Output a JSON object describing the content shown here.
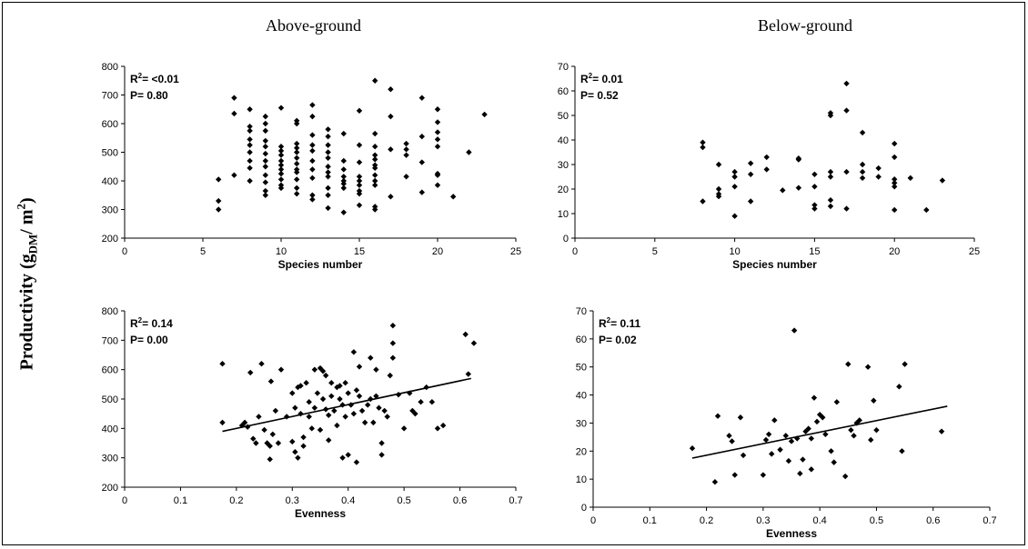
{
  "figure": {
    "col_titles": [
      "Above-ground",
      "Below-ground"
    ],
    "y_title_main": "Productivity (g",
    "y_title_sub": "DM",
    "y_title_mid": "/ m",
    "y_title_sup": "2",
    "y_title_end": ")"
  },
  "chart_data": [
    {
      "type": "scatter",
      "title": "Above-ground",
      "xlabel": "Species number",
      "ylabel": "Productivity (g DM/ m2)",
      "xlim": [
        0,
        25
      ],
      "ylim": [
        200,
        800
      ],
      "xticks": [
        0,
        5,
        10,
        15,
        20,
        25
      ],
      "yticks": [
        200,
        300,
        400,
        500,
        600,
        700,
        800
      ],
      "stats": {
        "r2_label": "R",
        "r2_sup": "2",
        "r2_value": "= <0.01",
        "p_text": "P= 0.80"
      },
      "grid": false,
      "points": [
        [
          6,
          405
        ],
        [
          6,
          330
        ],
        [
          6,
          300
        ],
        [
          7,
          690
        ],
        [
          7,
          635
        ],
        [
          7,
          420
        ],
        [
          8,
          650
        ],
        [
          8,
          590
        ],
        [
          8,
          575
        ],
        [
          8,
          545
        ],
        [
          8,
          525
        ],
        [
          8,
          500
        ],
        [
          8,
          470
        ],
        [
          8,
          445
        ],
        [
          8,
          400
        ],
        [
          9,
          625
        ],
        [
          9,
          600
        ],
        [
          9,
          575
        ],
        [
          9,
          540
        ],
        [
          9,
          520
        ],
        [
          9,
          495
        ],
        [
          9,
          470
        ],
        [
          9,
          450
        ],
        [
          9,
          420
        ],
        [
          9,
          395
        ],
        [
          9,
          365
        ],
        [
          9,
          350
        ],
        [
          10,
          655
        ],
        [
          10,
          520
        ],
        [
          10,
          505
        ],
        [
          10,
          490
        ],
        [
          10,
          470
        ],
        [
          10,
          455
        ],
        [
          10,
          440
        ],
        [
          10,
          425
        ],
        [
          10,
          405
        ],
        [
          10,
          385
        ],
        [
          10,
          375
        ],
        [
          11,
          610
        ],
        [
          11,
          600
        ],
        [
          11,
          530
        ],
        [
          11,
          515
        ],
        [
          11,
          500
        ],
        [
          11,
          480
        ],
        [
          11,
          460
        ],
        [
          11,
          440
        ],
        [
          11,
          430
        ],
        [
          11,
          405
        ],
        [
          11,
          375
        ],
        [
          11,
          355
        ],
        [
          12,
          665
        ],
        [
          12,
          625
        ],
        [
          12,
          560
        ],
        [
          12,
          525
        ],
        [
          12,
          505
        ],
        [
          12,
          470
        ],
        [
          12,
          440
        ],
        [
          12,
          410
        ],
        [
          12,
          350
        ],
        [
          12,
          335
        ],
        [
          13,
          580
        ],
        [
          13,
          555
        ],
        [
          13,
          525
        ],
        [
          13,
          500
        ],
        [
          13,
          480
        ],
        [
          13,
          450
        ],
        [
          13,
          430
        ],
        [
          13,
          415
        ],
        [
          13,
          375
        ],
        [
          13,
          350
        ],
        [
          13,
          305
        ],
        [
          14,
          565
        ],
        [
          14,
          470
        ],
        [
          14,
          440
        ],
        [
          14,
          415
        ],
        [
          14,
          400
        ],
        [
          14,
          390
        ],
        [
          14,
          375
        ],
        [
          14,
          290
        ],
        [
          15,
          645
        ],
        [
          15,
          525
        ],
        [
          15,
          465
        ],
        [
          15,
          415
        ],
        [
          15,
          400
        ],
        [
          15,
          385
        ],
        [
          15,
          365
        ],
        [
          15,
          355
        ],
        [
          15,
          315
        ],
        [
          16,
          750
        ],
        [
          16,
          565
        ],
        [
          16,
          520
        ],
        [
          16,
          490
        ],
        [
          16,
          475
        ],
        [
          16,
          455
        ],
        [
          16,
          445
        ],
        [
          16,
          420
        ],
        [
          16,
          400
        ],
        [
          16,
          385
        ],
        [
          16,
          310
        ],
        [
          16,
          300
        ],
        [
          17,
          720
        ],
        [
          17,
          625
        ],
        [
          17,
          510
        ],
        [
          17,
          345
        ],
        [
          18,
          530
        ],
        [
          18,
          510
        ],
        [
          18,
          490
        ],
        [
          18,
          415
        ],
        [
          19,
          690
        ],
        [
          19,
          555
        ],
        [
          19,
          465
        ],
        [
          19,
          360
        ],
        [
          20,
          650
        ],
        [
          20,
          605
        ],
        [
          20,
          570
        ],
        [
          20,
          545
        ],
        [
          20,
          520
        ],
        [
          20,
          425
        ],
        [
          20,
          420
        ],
        [
          20,
          385
        ],
        [
          21,
          345
        ],
        [
          22,
          500
        ],
        [
          23,
          632
        ]
      ]
    },
    {
      "type": "scatter",
      "title": "Below-ground",
      "xlabel": "Species number",
      "ylabel": "Productivity (g DM/ m2)",
      "xlim": [
        0,
        25
      ],
      "ylim": [
        0,
        70
      ],
      "xticks": [
        0,
        5,
        10,
        15,
        20,
        25
      ],
      "yticks": [
        0,
        10,
        20,
        30,
        40,
        50,
        60,
        70
      ],
      "stats": {
        "r2_label": "R",
        "r2_sup": "2",
        "r2_value": "= 0.01",
        "p_text": "P= 0.52"
      },
      "grid": false,
      "points": [
        [
          8,
          39
        ],
        [
          8,
          37
        ],
        [
          8,
          15
        ],
        [
          9,
          30
        ],
        [
          9,
          20
        ],
        [
          9,
          18
        ],
        [
          9,
          17
        ],
        [
          10,
          27
        ],
        [
          10,
          25
        ],
        [
          10,
          21
        ],
        [
          10,
          9
        ],
        [
          11,
          30.5
        ],
        [
          11,
          26
        ],
        [
          11,
          15
        ],
        [
          12,
          33
        ],
        [
          12,
          28
        ],
        [
          13,
          19.5
        ],
        [
          14,
          32.5
        ],
        [
          14,
          32
        ],
        [
          14,
          20.5
        ],
        [
          15,
          26
        ],
        [
          15,
          21
        ],
        [
          15,
          13.5
        ],
        [
          15,
          12
        ],
        [
          16,
          51
        ],
        [
          16,
          50
        ],
        [
          16,
          27
        ],
        [
          16,
          25
        ],
        [
          16,
          15.5
        ],
        [
          16,
          13
        ],
        [
          17,
          63
        ],
        [
          17,
          52
        ],
        [
          17,
          27
        ],
        [
          17,
          12
        ],
        [
          18,
          43
        ],
        [
          18,
          30
        ],
        [
          18,
          27
        ],
        [
          18,
          24.5
        ],
        [
          19,
          28.5
        ],
        [
          19,
          25
        ],
        [
          20,
          38.5
        ],
        [
          20,
          33
        ],
        [
          20,
          24
        ],
        [
          20,
          22.5
        ],
        [
          20,
          21
        ],
        [
          20,
          11.5
        ],
        [
          21,
          24.5
        ],
        [
          22,
          11.5
        ],
        [
          23,
          23.5
        ]
      ]
    },
    {
      "type": "scatter",
      "title": "Above-ground",
      "xlabel": "Evenness",
      "ylabel": "Productivity (g DM/ m2)",
      "xlim": [
        0,
        0.7
      ],
      "ylim": [
        200,
        800
      ],
      "xticks": [
        0,
        0.1,
        0.2,
        0.3,
        0.4,
        0.5,
        0.6,
        0.7
      ],
      "yticks": [
        200,
        300,
        400,
        500,
        600,
        700,
        800
      ],
      "stats": {
        "r2_label": "R",
        "r2_sup": "2",
        "r2_value": "= 0.14",
        "p_text": "P= 0.00"
      },
      "grid": false,
      "trendline": [
        [
          0.175,
          390
        ],
        [
          0.62,
          570
        ]
      ],
      "points": [
        [
          0.175,
          620
        ],
        [
          0.175,
          420
        ],
        [
          0.21,
          410
        ],
        [
          0.215,
          420
        ],
        [
          0.22,
          405
        ],
        [
          0.225,
          590
        ],
        [
          0.23,
          365
        ],
        [
          0.235,
          350
        ],
        [
          0.24,
          440
        ],
        [
          0.245,
          620
        ],
        [
          0.25,
          395
        ],
        [
          0.255,
          350
        ],
        [
          0.26,
          340
        ],
        [
          0.26,
          295
        ],
        [
          0.262,
          560
        ],
        [
          0.265,
          380
        ],
        [
          0.27,
          460
        ],
        [
          0.275,
          350
        ],
        [
          0.28,
          600
        ],
        [
          0.29,
          440
        ],
        [
          0.3,
          520
        ],
        [
          0.3,
          355
        ],
        [
          0.305,
          470
        ],
        [
          0.305,
          320
        ],
        [
          0.31,
          540
        ],
        [
          0.31,
          300
        ],
        [
          0.315,
          545
        ],
        [
          0.315,
          450
        ],
        [
          0.32,
          370
        ],
        [
          0.32,
          340
        ],
        [
          0.325,
          555
        ],
        [
          0.33,
          490
        ],
        [
          0.33,
          440
        ],
        [
          0.335,
          400
        ],
        [
          0.34,
          600
        ],
        [
          0.34,
          470
        ],
        [
          0.345,
          520
        ],
        [
          0.35,
          605
        ],
        [
          0.35,
          395
        ],
        [
          0.355,
          595
        ],
        [
          0.355,
          500
        ],
        [
          0.36,
          580
        ],
        [
          0.36,
          465
        ],
        [
          0.365,
          445
        ],
        [
          0.365,
          360
        ],
        [
          0.37,
          555
        ],
        [
          0.37,
          510
        ],
        [
          0.375,
          460
        ],
        [
          0.38,
          540
        ],
        [
          0.38,
          410
        ],
        [
          0.385,
          545
        ],
        [
          0.385,
          500
        ],
        [
          0.39,
          480
        ],
        [
          0.39,
          300
        ],
        [
          0.395,
          555
        ],
        [
          0.395,
          440
        ],
        [
          0.4,
          520
        ],
        [
          0.4,
          310
        ],
        [
          0.405,
          480
        ],
        [
          0.41,
          660
        ],
        [
          0.41,
          450
        ],
        [
          0.415,
          530
        ],
        [
          0.415,
          285
        ],
        [
          0.42,
          610
        ],
        [
          0.42,
          510
        ],
        [
          0.425,
          460
        ],
        [
          0.43,
          420
        ],
        [
          0.435,
          480
        ],
        [
          0.44,
          640
        ],
        [
          0.44,
          500
        ],
        [
          0.445,
          420
        ],
        [
          0.45,
          600
        ],
        [
          0.45,
          510
        ],
        [
          0.455,
          470
        ],
        [
          0.46,
          350
        ],
        [
          0.46,
          310
        ],
        [
          0.465,
          460
        ],
        [
          0.47,
          440
        ],
        [
          0.475,
          580
        ],
        [
          0.48,
          750
        ],
        [
          0.48,
          690
        ],
        [
          0.48,
          640
        ],
        [
          0.49,
          515
        ],
        [
          0.5,
          400
        ],
        [
          0.51,
          520
        ],
        [
          0.515,
          460
        ],
        [
          0.52,
          450
        ],
        [
          0.53,
          490
        ],
        [
          0.54,
          540
        ],
        [
          0.55,
          490
        ],
        [
          0.56,
          400
        ],
        [
          0.57,
          410
        ],
        [
          0.61,
          720
        ],
        [
          0.615,
          585
        ],
        [
          0.625,
          690
        ]
      ]
    },
    {
      "type": "scatter",
      "title": "Below-ground",
      "xlabel": "Evenness",
      "ylabel": "Productivity (g DM/ m2)",
      "xlim": [
        0,
        0.7
      ],
      "ylim": [
        0,
        70
      ],
      "xticks": [
        0,
        0.1,
        0.2,
        0.3,
        0.4,
        0.5,
        0.6,
        0.7
      ],
      "yticks": [
        0,
        10,
        20,
        30,
        40,
        50,
        60,
        70
      ],
      "stats": {
        "r2_label": "R",
        "r2_sup": "2",
        "r2_value": "= 0.11",
        "p_text": "P= 0.02"
      },
      "grid": false,
      "trendline": [
        [
          0.175,
          17.5
        ],
        [
          0.625,
          36
        ]
      ],
      "points": [
        [
          0.175,
          21
        ],
        [
          0.215,
          9
        ],
        [
          0.22,
          32.5
        ],
        [
          0.24,
          25.5
        ],
        [
          0.245,
          23.5
        ],
        [
          0.25,
          11.5
        ],
        [
          0.26,
          32
        ],
        [
          0.265,
          18.5
        ],
        [
          0.3,
          11.5
        ],
        [
          0.305,
          24
        ],
        [
          0.31,
          26
        ],
        [
          0.315,
          19
        ],
        [
          0.32,
          31
        ],
        [
          0.33,
          20.5
        ],
        [
          0.34,
          25.5
        ],
        [
          0.345,
          16.5
        ],
        [
          0.35,
          23.5
        ],
        [
          0.355,
          63
        ],
        [
          0.36,
          24.5
        ],
        [
          0.365,
          12
        ],
        [
          0.37,
          17
        ],
        [
          0.375,
          27
        ],
        [
          0.38,
          28
        ],
        [
          0.385,
          13.5
        ],
        [
          0.385,
          24.5
        ],
        [
          0.39,
          39
        ],
        [
          0.395,
          30.5
        ],
        [
          0.4,
          33
        ],
        [
          0.405,
          32
        ],
        [
          0.41,
          26
        ],
        [
          0.42,
          20
        ],
        [
          0.425,
          16
        ],
        [
          0.43,
          37.5
        ],
        [
          0.445,
          11
        ],
        [
          0.45,
          51
        ],
        [
          0.455,
          27.5
        ],
        [
          0.46,
          25.5
        ],
        [
          0.465,
          30
        ],
        [
          0.47,
          31
        ],
        [
          0.485,
          50
        ],
        [
          0.49,
          24
        ],
        [
          0.495,
          38
        ],
        [
          0.5,
          27.5
        ],
        [
          0.54,
          43
        ],
        [
          0.545,
          20
        ],
        [
          0.55,
          51
        ],
        [
          0.615,
          27
        ]
      ]
    }
  ]
}
